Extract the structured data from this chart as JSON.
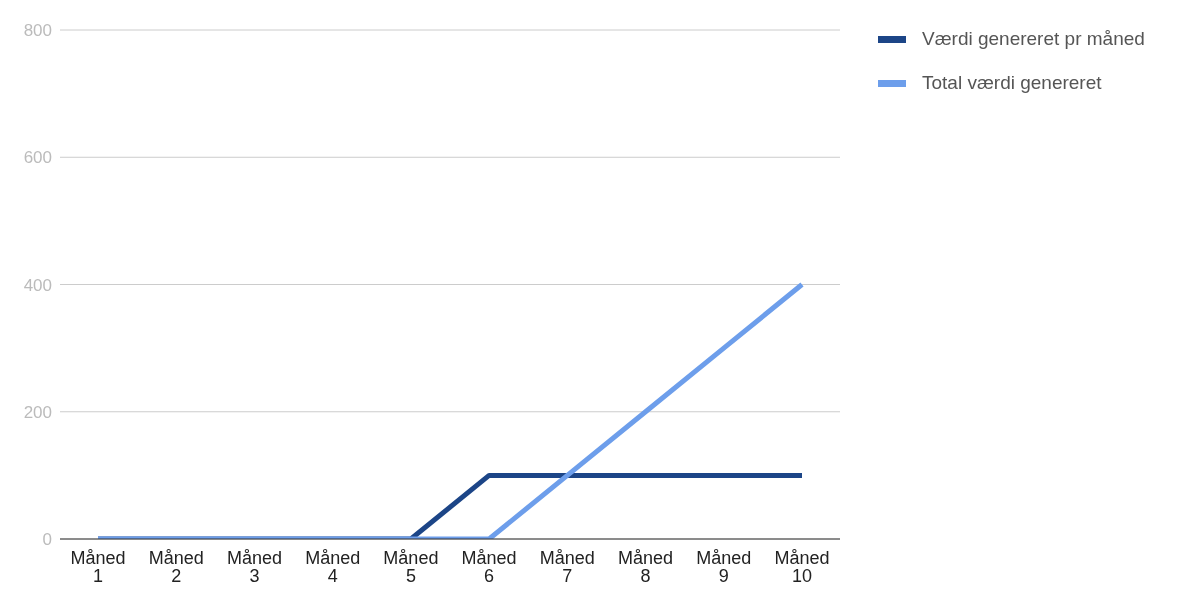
{
  "chart_data": {
    "type": "line",
    "categories": [
      "Måned 1",
      "Måned 2",
      "Måned 3",
      "Måned 4",
      "Måned 5",
      "Måned 6",
      "Måned 7",
      "Måned 8",
      "Måned 9",
      "Måned 10"
    ],
    "series": [
      {
        "name": "Værdi genereret pr måned",
        "color": "#1c4587",
        "values": [
          0,
          0,
          0,
          0,
          0,
          100,
          100,
          100,
          100,
          100
        ]
      },
      {
        "name": "Total værdi genereret",
        "color": "#6d9eeb",
        "values": [
          0,
          0,
          0,
          0,
          0,
          0,
          100,
          200,
          300,
          400
        ]
      }
    ],
    "ylim": [
      0,
      800
    ],
    "yticks": [
      0,
      200,
      400,
      600,
      800
    ],
    "grid": "y",
    "legend": "top right",
    "marker": "none",
    "line_style": "solid"
  }
}
